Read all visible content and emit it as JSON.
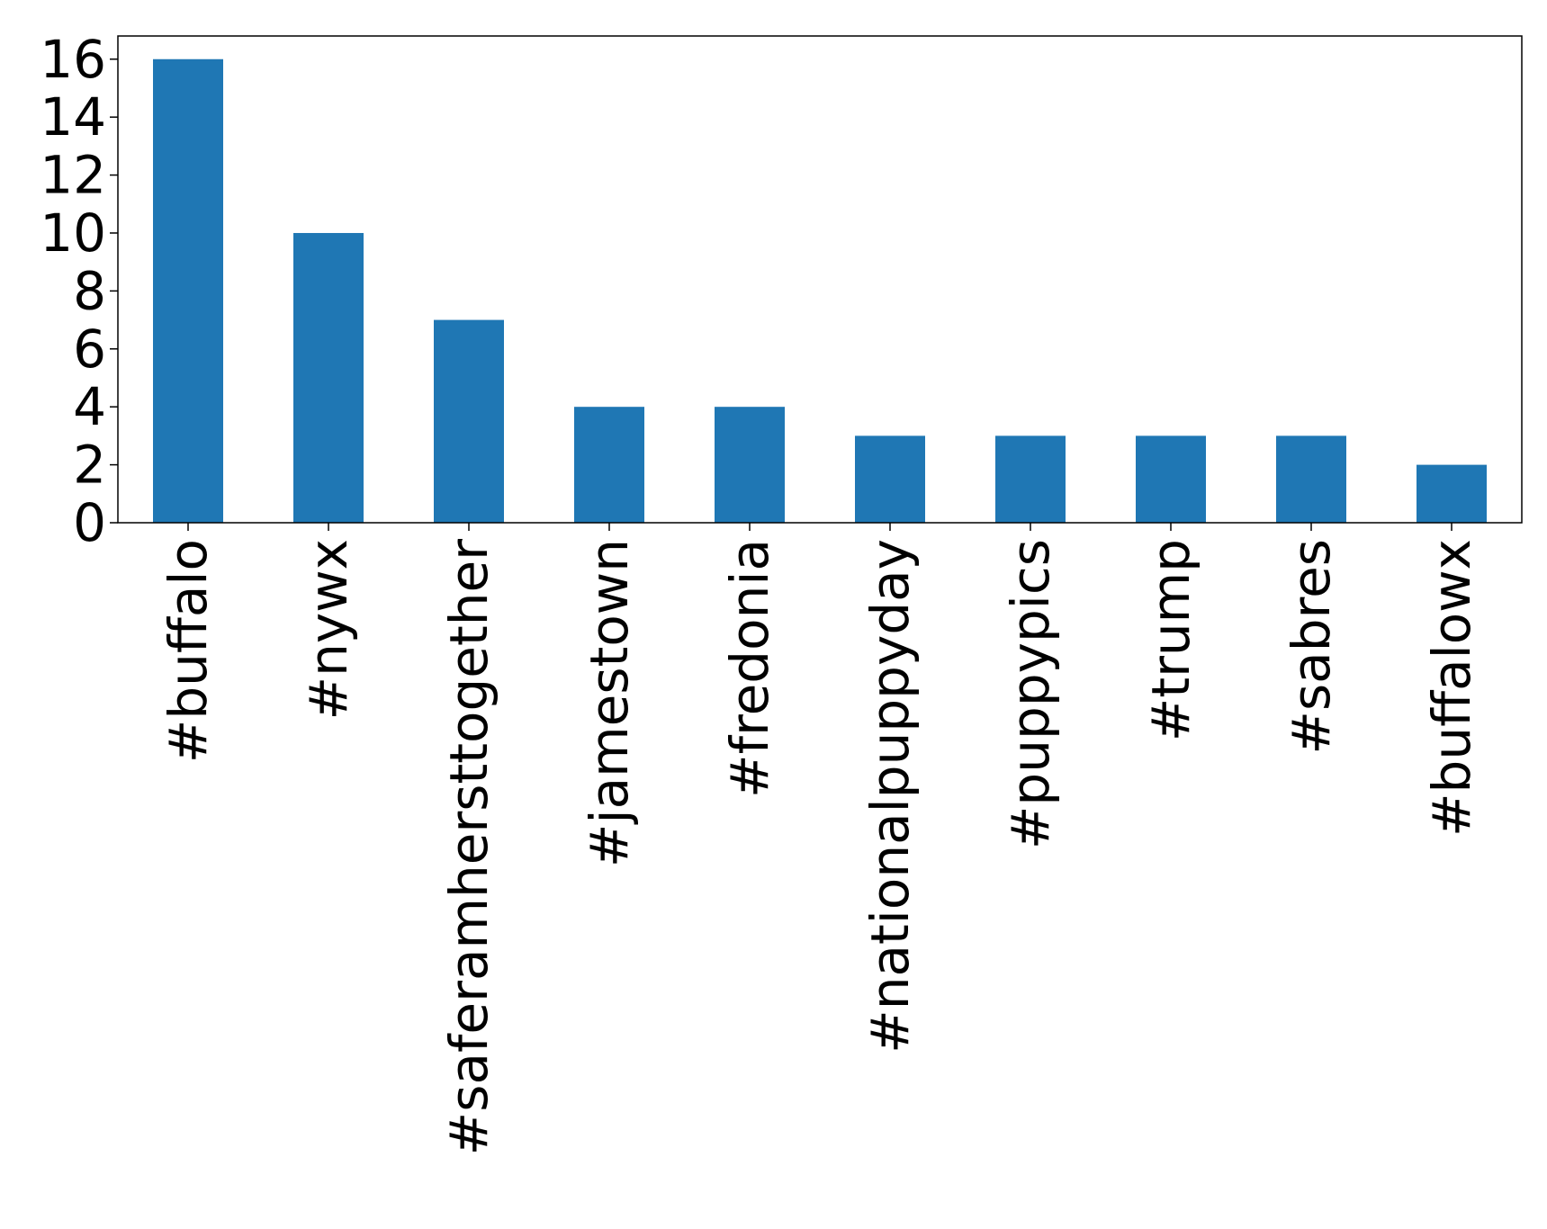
{
  "chart_data": {
    "type": "bar",
    "title": "",
    "xlabel": "",
    "ylabel": "",
    "categories": [
      "#buffalo",
      "#nywx",
      "#saferamhersttogether",
      "#jamestown",
      "#fredonia",
      "#nationalpuppyday",
      "#puppypics",
      "#trump",
      "#sabres",
      "#buffalowx"
    ],
    "values": [
      16,
      10,
      7,
      4,
      4,
      3,
      3,
      3,
      3,
      2
    ],
    "ylim": [
      0,
      16.8
    ],
    "yticks": [
      0,
      2,
      4,
      6,
      8,
      10,
      12,
      14,
      16
    ],
    "bar_color": "#1f77b4",
    "grid": false,
    "legend": "none"
  }
}
